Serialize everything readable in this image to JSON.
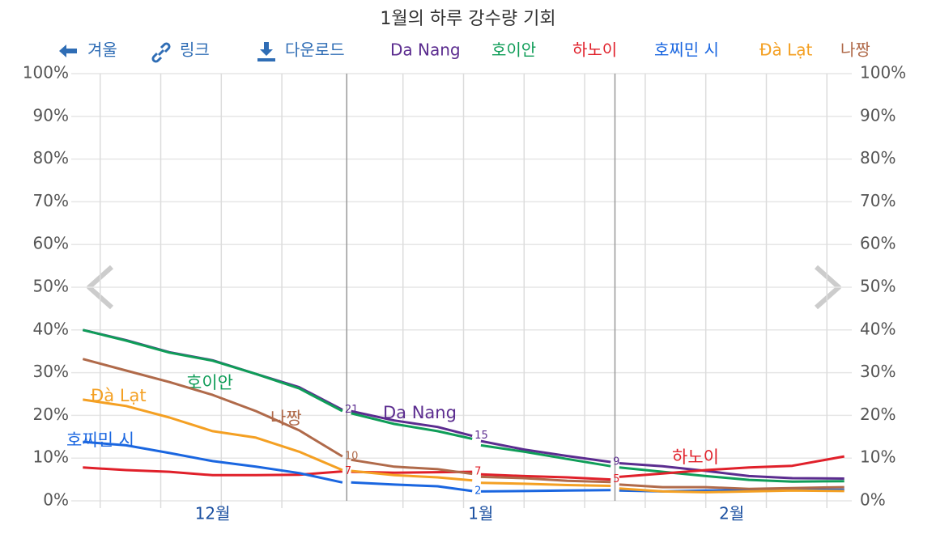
{
  "chart_data": {
    "type": "line",
    "title": "1월의 하루 강수량 기회",
    "controls": [
      "겨울",
      "링크",
      "다운로드"
    ],
    "x": [
      0,
      5,
      10,
      15,
      20,
      25,
      30,
      30.5,
      31,
      36,
      41,
      45,
      45.5,
      46,
      51,
      56,
      61,
      61.5,
      62,
      67,
      72,
      77,
      82,
      88
    ],
    "xlim": [
      -0.5,
      88.5
    ],
    "xticks": [
      {
        "value": 15,
        "label": "12월"
      },
      {
        "value": 46,
        "label": "1월"
      },
      {
        "value": 75,
        "label": "2월"
      }
    ],
    "xgrid": [
      2,
      9,
      16,
      23,
      37,
      44,
      51,
      58,
      65,
      72,
      79,
      86
    ],
    "highlight_range": [
      30.5,
      61.5
    ],
    "ylim": [
      0,
      100
    ],
    "yticks": [
      {
        "value": 0,
        "label": "0%"
      },
      {
        "value": 10,
        "label": "10%"
      },
      {
        "value": 20,
        "label": "20%"
      },
      {
        "value": 30,
        "label": "30%"
      },
      {
        "value": 40,
        "label": "40%"
      },
      {
        "value": 50,
        "label": "50%"
      },
      {
        "value": 60,
        "label": "60%"
      },
      {
        "value": 70,
        "label": "70%"
      },
      {
        "value": 80,
        "label": "80%"
      },
      {
        "value": 90,
        "label": "90%"
      },
      {
        "value": 100,
        "label": "100%"
      }
    ],
    "grid": true,
    "series": [
      {
        "name": "Da Nang",
        "color": "#5b2c8f",
        "values": [
          40,
          37.6,
          34.8,
          32.9,
          29.7,
          26.6,
          21.3,
          null,
          21,
          18.8,
          17.3,
          15.2,
          null,
          14,
          12,
          10.5,
          9.1,
          null,
          8.8,
          8.1,
          7,
          5.8,
          5.3,
          5.2
        ],
        "value_labels": [
          null,
          null,
          null,
          null,
          null,
          null,
          "21",
          null,
          null,
          null,
          null,
          "15",
          null,
          null,
          null,
          null,
          "9",
          null,
          null,
          null,
          null,
          null,
          null,
          null
        ]
      },
      {
        "name": "호이안",
        "color": "#0f9d58",
        "values": [
          40,
          37.5,
          34.7,
          32.8,
          29.7,
          26.3,
          21.0,
          null,
          20.5,
          18,
          16.3,
          14.5,
          null,
          13,
          11.5,
          9.8,
          8.1,
          null,
          7.8,
          6.8,
          5.8,
          4.9,
          4.5,
          4.6
        ]
      },
      {
        "name": "하노이",
        "color": "#e0202a",
        "values": [
          7.8,
          7.2,
          6.8,
          6.0,
          6.0,
          6.1,
          6.9,
          null,
          6.8,
          6.6,
          6.7,
          6.8,
          null,
          6.2,
          5.8,
          5.5,
          5.0,
          null,
          5.6,
          6.4,
          7.2,
          7.8,
          8.2,
          10.4
        ],
        "value_labels": [
          null,
          null,
          null,
          null,
          null,
          null,
          "7",
          null,
          null,
          null,
          null,
          "7",
          null,
          null,
          null,
          null,
          "5",
          null,
          null,
          null,
          null,
          null,
          null,
          null
        ]
      },
      {
        "name": "호찌민 시",
        "color": "#1a66e0",
        "values": [
          13.8,
          13,
          11.2,
          9.3,
          8.0,
          6.5,
          4.3,
          null,
          4.3,
          3.8,
          3.4,
          2.3,
          null,
          2.2,
          2.3,
          2.4,
          2.5,
          null,
          2.4,
          2.2,
          2.4,
          2.5,
          2.6,
          2.6
        ],
        "value_labels": [
          null,
          null,
          null,
          null,
          null,
          null,
          null,
          null,
          null,
          null,
          null,
          "2",
          null,
          null,
          null,
          null,
          null,
          null,
          null,
          null,
          null,
          null,
          null,
          null
        ]
      },
      {
        "name": "Đà Lạt",
        "color": "#f4a023",
        "values": [
          23.7,
          22.2,
          19.5,
          16.3,
          14.8,
          11.5,
          7.2,
          null,
          7,
          6,
          5.5,
          4.8,
          null,
          4.2,
          4.0,
          3.7,
          3.5,
          null,
          2.9,
          2.2,
          2.0,
          2.2,
          2.4,
          2.3
        ]
      },
      {
        "name": "나짱",
        "color": "#b06a4a",
        "values": [
          33.2,
          30.5,
          27.8,
          24.8,
          21,
          16.5,
          10.4,
          null,
          9.6,
          8.0,
          7.4,
          6.3,
          null,
          5.6,
          5.3,
          4.7,
          4.4,
          null,
          3.8,
          3.2,
          3.2,
          2.8,
          3.0,
          3.2
        ],
        "value_labels": [
          null,
          null,
          null,
          null,
          null,
          null,
          "10",
          null,
          null,
          null,
          null,
          null,
          null,
          null,
          null,
          null,
          null,
          null,
          null,
          null,
          null,
          null,
          null,
          null
        ]
      }
    ]
  }
}
